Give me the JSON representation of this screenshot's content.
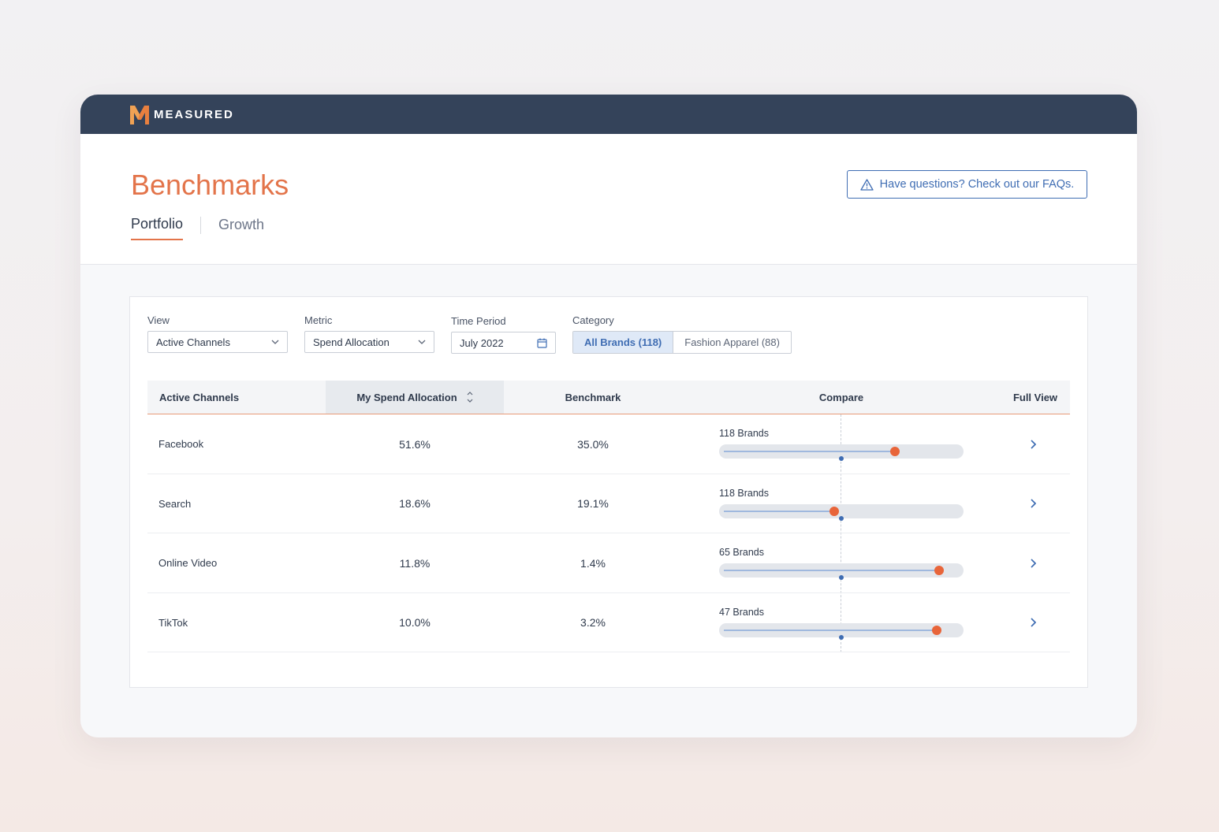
{
  "app": {
    "brand": "MEASURED",
    "brand_color": "#e3744a",
    "topbar_color": "#34435a"
  },
  "header": {
    "title": "Benchmarks",
    "faq_label": "Have questions? Check out our FAQs.",
    "tabs": [
      {
        "label": "Portfolio",
        "active": true
      },
      {
        "label": "Growth",
        "active": false
      }
    ]
  },
  "filters": {
    "view": {
      "label": "View",
      "value": "Active Channels"
    },
    "metric": {
      "label": "Metric",
      "value": "Spend Allocation"
    },
    "time_period": {
      "label": "Time Period",
      "value": "July 2022"
    },
    "category": {
      "label": "Category",
      "options": [
        {
          "label": "All Brands (118)",
          "active": true
        },
        {
          "label": "Fashion Apparel (88)",
          "active": false
        }
      ]
    }
  },
  "table": {
    "columns": [
      "Active Channels",
      "My Spend Allocation",
      "Benchmark",
      "Compare",
      "Full View"
    ],
    "sorted_column": "My Spend Allocation",
    "rows": [
      {
        "channel": "Facebook",
        "my_value": "51.6%",
        "benchmark": "35.0%",
        "brands": "118 Brands",
        "me_position": 0.72,
        "benchmark_position": 0.5
      },
      {
        "channel": "Search",
        "my_value": "18.6%",
        "benchmark": "19.1%",
        "brands": "118 Brands",
        "me_position": 0.47,
        "benchmark_position": 0.5
      },
      {
        "channel": "Online Video",
        "my_value": "11.8%",
        "benchmark": "1.4%",
        "brands": "65 Brands",
        "me_position": 0.9,
        "benchmark_position": 0.5
      },
      {
        "channel": "TikTok",
        "my_value": "10.0%",
        "benchmark": "3.2%",
        "brands": "47 Brands",
        "me_position": 0.89,
        "benchmark_position": 0.5
      }
    ]
  },
  "icons": {
    "faq": "warning-triangle-icon",
    "date": "calendar-icon",
    "select": "chevron-down-icon",
    "sort": "sort-icon",
    "row": "chevron-right-icon"
  }
}
